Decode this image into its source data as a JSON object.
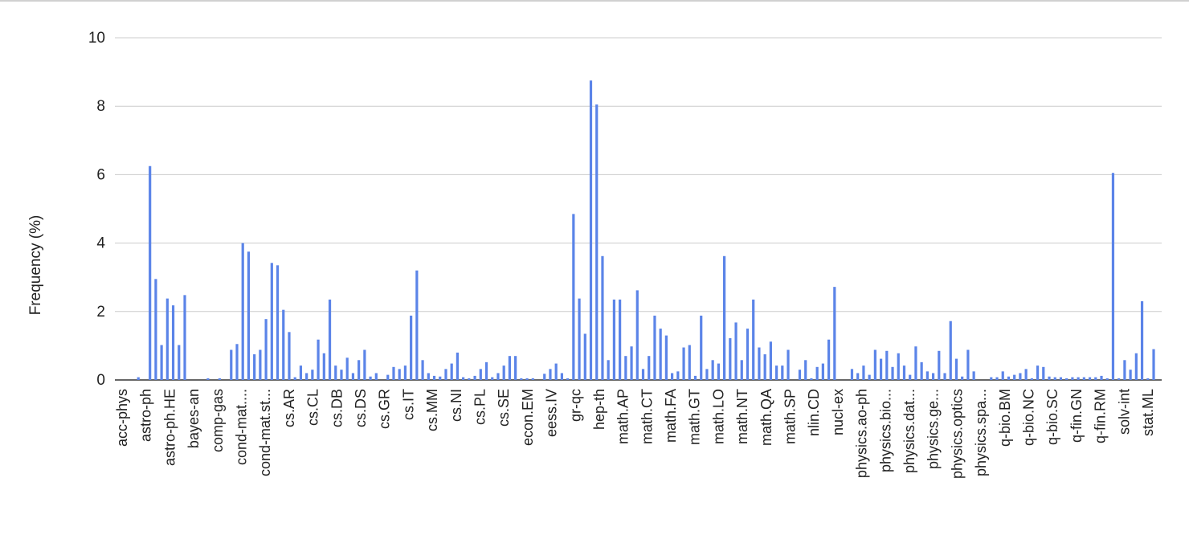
{
  "chart_data": {
    "type": "bar",
    "ylabel": "Frequency (%)",
    "ylim": [
      0,
      10
    ],
    "yticks": [
      0,
      2,
      4,
      6,
      8,
      10
    ],
    "grid": true,
    "bar_color": "#5b84e8",
    "grid_color": "#cccccc",
    "xtick_labels": [
      "acc-phys",
      "astro-ph",
      "astro-ph.HE",
      "bayes-an",
      "comp-gas",
      "cond-mat....",
      "cond-mat.st...",
      "cs.AR",
      "cs.CL",
      "cs.DB",
      "cs.DS",
      "cs.GR",
      "cs.IT",
      "cs.MM",
      "cs.NI",
      "cs.PL",
      "cs.SE",
      "econ.EM",
      "eess.IV",
      "gr-qc",
      "hep-th",
      "math.AP",
      "math.CT",
      "math.FA",
      "math.GT",
      "math.LO",
      "math.NT",
      "math.QA",
      "math.SP",
      "nlin.CD",
      "nucl-ex",
      "physics.ao-ph",
      "physics.bio...",
      "physics.dat...",
      "physics.ge...",
      "physics.optics",
      "physics.spa...",
      "q-bio.BM",
      "q-bio.NC",
      "q-bio.SC",
      "q-fin.GN",
      "q-fin.RM",
      "solv-int",
      "stat.ML"
    ],
    "values": [
      0.0,
      0.08,
      0.0,
      6.25,
      2.95,
      1.02,
      2.38,
      2.18,
      1.02,
      2.48,
      0.0,
      0.0,
      0.0,
      0.05,
      0.0,
      0.05,
      0.0,
      0.88,
      1.05,
      4.0,
      3.75,
      0.75,
      0.88,
      1.78,
      3.42,
      3.35,
      2.05,
      1.4,
      0.08,
      0.42,
      0.2,
      0.3,
      1.18,
      0.78,
      2.35,
      0.42,
      0.3,
      0.65,
      0.2,
      0.58,
      0.88,
      0.1,
      0.2,
      0.0,
      0.15,
      0.38,
      0.32,
      0.42,
      1.88,
      3.2,
      0.58,
      0.2,
      0.12,
      0.1,
      0.32,
      0.48,
      0.8,
      0.08,
      0.05,
      0.12,
      0.32,
      0.52,
      0.08,
      0.2,
      0.42,
      0.7,
      0.7,
      0.05,
      0.05,
      0.05,
      0.0,
      0.18,
      0.32,
      0.48,
      0.2,
      0.05,
      4.85,
      2.38,
      1.35,
      8.75,
      8.05,
      3.62,
      0.58,
      2.35,
      2.35,
      0.7,
      0.98,
      2.62,
      0.32,
      0.7,
      1.88,
      1.5,
      1.3,
      0.2,
      0.25,
      0.95,
      1.02,
      0.12,
      1.88,
      0.32,
      0.58,
      0.48,
      3.62,
      1.22,
      1.68,
      0.58,
      1.5,
      2.35,
      0.95,
      0.75,
      1.12,
      0.42,
      0.42,
      0.88,
      0.0,
      0.3,
      0.58,
      0.05,
      0.38,
      0.48,
      1.18,
      2.72,
      0.0,
      0.0,
      0.32,
      0.2,
      0.42,
      0.15,
      0.88,
      0.62,
      0.85,
      0.38,
      0.78,
      0.42,
      0.15,
      0.98,
      0.52,
      0.25,
      0.2,
      0.85,
      0.2,
      1.72,
      0.62,
      0.1,
      0.88,
      0.25,
      0.0,
      0.0,
      0.08,
      0.08,
      0.25,
      0.1,
      0.15,
      0.2,
      0.32,
      0.05,
      0.42,
      0.38,
      0.1,
      0.08,
      0.08,
      0.05,
      0.08,
      0.08,
      0.08,
      0.08,
      0.08,
      0.12,
      0.05,
      6.05,
      0.05,
      0.58,
      0.3,
      0.78,
      2.3,
      0.05,
      0.9
    ]
  }
}
